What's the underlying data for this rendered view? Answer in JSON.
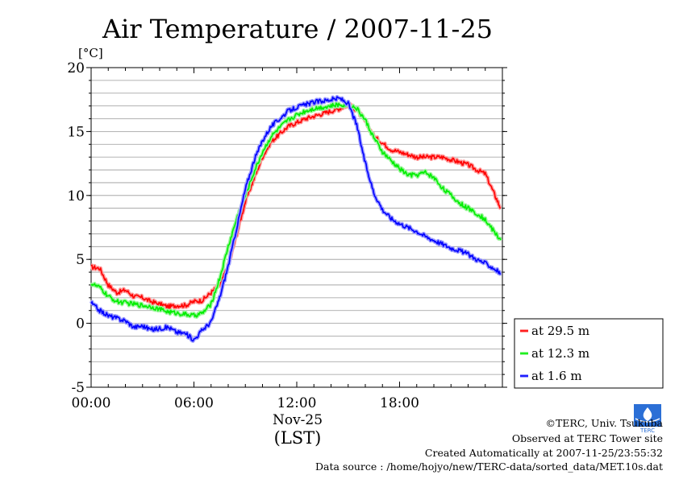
{
  "chart_data": {
    "type": "line",
    "title": "Air Temperature / 2007-11-25",
    "ylabel": "[°C]",
    "xlabel_date": "Nov-25",
    "xlabel_tz": "(LST)",
    "ylim": [
      -5,
      20
    ],
    "yticks": [
      "-5",
      "0",
      "5",
      "10",
      "15",
      "20"
    ],
    "xlim_hours": [
      0,
      24
    ],
    "xticks": [
      {
        "hour": 0,
        "label": "00:00"
      },
      {
        "hour": 6,
        "label": "06:00"
      },
      {
        "hour": 12,
        "label": "12:00"
      },
      {
        "hour": 18,
        "label": "18:00"
      }
    ],
    "grid": true,
    "legend_position": "bottom-right, outside plot",
    "x": [
      0,
      0.5,
      1,
      1.5,
      2,
      2.5,
      3,
      3.5,
      4,
      4.5,
      5,
      5.5,
      6,
      6.5,
      7,
      7.5,
      8,
      8.5,
      9,
      9.5,
      10,
      10.5,
      11,
      11.5,
      12,
      12.5,
      13,
      13.5,
      14,
      14.5,
      15,
      15.5,
      16,
      16.5,
      17,
      17.5,
      18,
      18.5,
      19,
      19.5,
      20,
      20.5,
      21,
      21.5,
      22,
      22.5,
      23,
      23.5,
      23.9
    ],
    "series": [
      {
        "name": "at 29.5 m",
        "color": "#ff0000",
        "values": [
          4.4,
          4.3,
          3.0,
          2.4,
          2.6,
          2.1,
          2.0,
          1.7,
          1.5,
          1.3,
          1.4,
          1.4,
          1.7,
          1.8,
          2.4,
          3.0,
          4.5,
          7.0,
          9.5,
          11.3,
          13.0,
          14.2,
          14.8,
          15.4,
          15.7,
          16.0,
          16.2,
          16.4,
          16.6,
          16.8,
          17.1,
          16.7,
          15.8,
          14.6,
          14.1,
          13.6,
          13.4,
          13.2,
          13.0,
          13.0,
          13.0,
          13.0,
          12.8,
          12.6,
          12.4,
          12.0,
          11.7,
          10.2,
          9.0
        ]
      },
      {
        "name": "at 12.3 m",
        "color": "#00ee00",
        "values": [
          3.1,
          2.8,
          2.1,
          1.7,
          1.6,
          1.5,
          1.4,
          1.3,
          1.1,
          0.9,
          0.8,
          0.7,
          0.6,
          0.8,
          1.5,
          3.5,
          6.0,
          8.2,
          10.0,
          11.8,
          13.4,
          14.6,
          15.3,
          15.9,
          16.3,
          16.6,
          16.8,
          16.9,
          17.0,
          17.1,
          17.1,
          16.8,
          15.9,
          14.5,
          13.4,
          12.7,
          12.1,
          11.6,
          11.6,
          11.8,
          11.4,
          10.6,
          10.0,
          9.4,
          9.0,
          8.6,
          8.1,
          7.2,
          6.5
        ]
      },
      {
        "name": "at 1.6 m",
        "color": "#0000ff",
        "values": [
          1.6,
          1.0,
          0.6,
          0.4,
          0.2,
          -0.3,
          -0.2,
          -0.5,
          -0.4,
          -0.3,
          -0.7,
          -0.8,
          -1.3,
          -0.5,
          0.1,
          2.0,
          4.5,
          7.5,
          10.5,
          12.7,
          14.3,
          15.4,
          16.0,
          16.6,
          16.9,
          17.1,
          17.3,
          17.4,
          17.5,
          17.6,
          17.2,
          15.5,
          12.5,
          10.2,
          8.9,
          8.2,
          7.8,
          7.5,
          7.2,
          6.8,
          6.5,
          6.2,
          5.9,
          5.7,
          5.4,
          5.0,
          4.7,
          4.3,
          3.9
        ]
      }
    ]
  },
  "footer": {
    "copyright": "©TERC, Univ. Tsukuba",
    "observed": "Observed at TERC Tower site",
    "created": "Created Automatically at 2007-11-25/23:55:32",
    "source": "Data source : /home/hojyo/new/TERC-data/sorted_data/MET.10s.dat",
    "logo_text": "TERC"
  }
}
